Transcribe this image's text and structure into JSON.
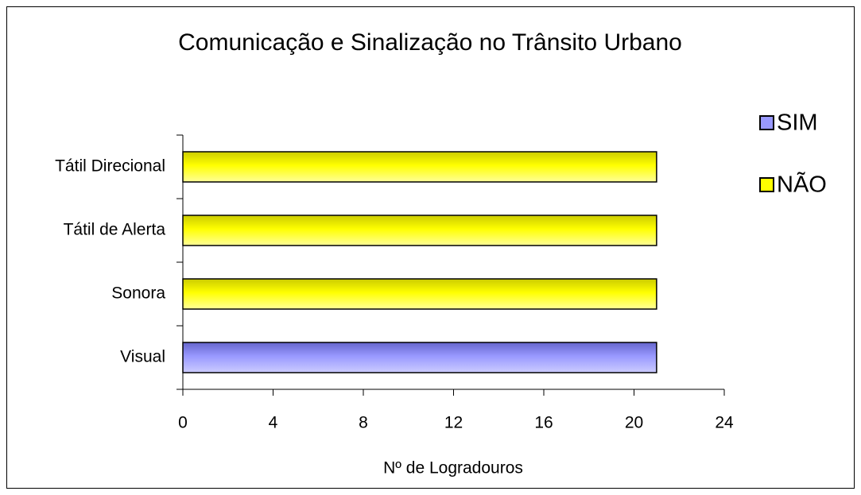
{
  "chart_data": {
    "type": "barh",
    "title": "Comunicação e Sinalização no Trânsito Urbano",
    "x_label": "Nº de Logradouros",
    "categories": [
      "Visual",
      "Sonora",
      "Tátil de Alerta",
      "Tátil Direcional"
    ],
    "series": [
      {
        "name": "SIM",
        "color": "#9999ff",
        "values": [
          21,
          null,
          null,
          null
        ]
      },
      {
        "name": "NÃO",
        "color": "#ffff00",
        "values": [
          null,
          21,
          21,
          21
        ]
      }
    ],
    "xlim": [
      0,
      24
    ],
    "xticks": [
      0,
      4,
      8,
      12,
      16,
      20,
      24
    ],
    "legend": "right"
  }
}
